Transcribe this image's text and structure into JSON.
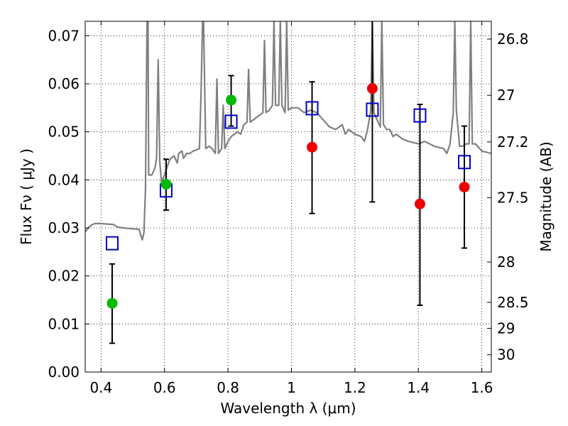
{
  "chart_data": {
    "type": "scatter",
    "xlabel": "Wavelength  λ (μm)",
    "ylabel": "Flux  Fν  ( μJy )",
    "y2label": "Magnitude (AB)",
    "xlim": [
      0.35,
      1.63
    ],
    "ylim": [
      0.0,
      0.073
    ],
    "grid": true,
    "x_ticks": [
      0.4,
      0.6,
      0.8,
      1.0,
      1.2,
      1.4,
      1.6
    ],
    "x_tick_labels": [
      "0.4",
      "0.6",
      "0.8",
      "1",
      "1.2",
      "1.4",
      "1.6"
    ],
    "y_ticks": [
      0.0,
      0.01,
      0.02,
      0.03,
      0.04,
      0.05,
      0.06,
      0.07
    ],
    "y_tick_labels": [
      "0.00",
      "0.01",
      "0.02",
      "0.03",
      "0.04",
      "0.05",
      "0.06",
      "0.07"
    ],
    "y2_ticks": [
      {
        "label": "26.8",
        "flux": 0.0693
      },
      {
        "label": "27",
        "flux": 0.0576
      },
      {
        "label": "27.2",
        "flux": 0.0479
      },
      {
        "label": "27.5",
        "flux": 0.0363
      },
      {
        "label": "28",
        "flux": 0.0229
      },
      {
        "label": "28.5",
        "flux": 0.0145
      },
      {
        "label": "29",
        "flux": 0.0091
      },
      {
        "label": "30",
        "flux": 0.0036
      }
    ],
    "series": [
      {
        "marker": "line",
        "color": "#808080",
        "points": [
          [
            0.35,
            0.0292
          ],
          [
            0.36,
            0.03
          ],
          [
            0.37,
            0.0306
          ],
          [
            0.38,
            0.0309
          ],
          [
            0.4,
            0.0309
          ],
          [
            0.42,
            0.0308
          ],
          [
            0.44,
            0.0307
          ],
          [
            0.45,
            0.0302
          ],
          [
            0.47,
            0.03
          ],
          [
            0.5,
            0.0298
          ],
          [
            0.52,
            0.0297
          ],
          [
            0.525,
            0.0285
          ],
          [
            0.53,
            0.0275
          ],
          [
            0.535,
            0.029
          ],
          [
            0.54,
            0.038
          ],
          [
            0.545,
            0.073
          ],
          [
            0.548,
            0.073
          ],
          [
            0.55,
            0.041
          ],
          [
            0.56,
            0.041
          ],
          [
            0.57,
            0.0425
          ],
          [
            0.575,
            0.0445
          ],
          [
            0.58,
            0.065
          ],
          [
            0.585,
            0.044
          ],
          [
            0.59,
            0.0395
          ],
          [
            0.6,
            0.041
          ],
          [
            0.61,
            0.043
          ],
          [
            0.615,
            0.044
          ],
          [
            0.62,
            0.0445
          ],
          [
            0.63,
            0.045
          ],
          [
            0.64,
            0.0435
          ],
          [
            0.645,
            0.0455
          ],
          [
            0.655,
            0.046
          ],
          [
            0.66,
            0.0445
          ],
          [
            0.67,
            0.0455
          ],
          [
            0.68,
            0.0455
          ],
          [
            0.69,
            0.046
          ],
          [
            0.7,
            0.0462
          ],
          [
            0.71,
            0.0465
          ],
          [
            0.715,
            0.0575
          ],
          [
            0.72,
            0.073
          ],
          [
            0.723,
            0.073
          ],
          [
            0.73,
            0.0465
          ],
          [
            0.74,
            0.047
          ],
          [
            0.75,
            0.0465
          ],
          [
            0.76,
            0.0455
          ],
          [
            0.765,
            0.061
          ],
          [
            0.77,
            0.0455
          ],
          [
            0.78,
            0.0465
          ],
          [
            0.785,
            0.0555
          ],
          [
            0.79,
            0.0465
          ],
          [
            0.8,
            0.048
          ],
          [
            0.81,
            0.049
          ],
          [
            0.82,
            0.0495
          ],
          [
            0.83,
            0.05
          ],
          [
            0.84,
            0.0495
          ],
          [
            0.85,
            0.0515
          ],
          [
            0.86,
            0.052
          ],
          [
            0.865,
            0.063
          ],
          [
            0.87,
            0.052
          ],
          [
            0.88,
            0.0525
          ],
          [
            0.89,
            0.053
          ],
          [
            0.9,
            0.0535
          ],
          [
            0.91,
            0.054
          ],
          [
            0.915,
            0.069
          ],
          [
            0.92,
            0.054
          ],
          [
            0.93,
            0.0545
          ],
          [
            0.94,
            0.0555
          ],
          [
            0.945,
            0.073
          ],
          [
            0.95,
            0.0555
          ],
          [
            0.96,
            0.0555
          ],
          [
            0.965,
            0.073
          ],
          [
            0.97,
            0.0555
          ],
          [
            0.98,
            0.054
          ],
          [
            0.985,
            0.073
          ],
          [
            0.99,
            0.0545
          ],
          [
            1.0,
            0.055
          ],
          [
            1.02,
            0.055
          ],
          [
            1.04,
            0.054
          ],
          [
            1.06,
            0.0545
          ],
          [
            1.08,
            0.054
          ],
          [
            1.1,
            0.0525
          ],
          [
            1.12,
            0.051
          ],
          [
            1.14,
            0.0505
          ],
          [
            1.16,
            0.0515
          ],
          [
            1.17,
            0.0495
          ],
          [
            1.18,
            0.0505
          ],
          [
            1.2,
            0.0495
          ],
          [
            1.22,
            0.049
          ],
          [
            1.23,
            0.048
          ],
          [
            1.24,
            0.0505
          ],
          [
            1.25,
            0.0545
          ],
          [
            1.255,
            0.073
          ],
          [
            1.26,
            0.054
          ],
          [
            1.27,
            0.0525
          ],
          [
            1.28,
            0.051
          ],
          [
            1.285,
            0.073
          ],
          [
            1.29,
            0.0515
          ],
          [
            1.3,
            0.0505
          ],
          [
            1.31,
            0.0505
          ],
          [
            1.32,
            0.049
          ],
          [
            1.33,
            0.0495
          ],
          [
            1.34,
            0.049
          ],
          [
            1.35,
            0.0485
          ],
          [
            1.37,
            0.048
          ],
          [
            1.4,
            0.0475
          ],
          [
            1.42,
            0.048
          ],
          [
            1.45,
            0.047
          ],
          [
            1.48,
            0.0465
          ],
          [
            1.49,
            0.0455
          ],
          [
            1.5,
            0.0475
          ],
          [
            1.51,
            0.054
          ],
          [
            1.515,
            0.073
          ],
          [
            1.52,
            0.0545
          ],
          [
            1.53,
            0.047
          ],
          [
            1.54,
            0.047
          ],
          [
            1.55,
            0.0475
          ],
          [
            1.56,
            0.0475
          ],
          [
            1.565,
            0.073
          ],
          [
            1.57,
            0.0475
          ],
          [
            1.58,
            0.0475
          ],
          [
            1.6,
            0.046
          ],
          [
            1.63,
            0.0455
          ]
        ]
      },
      {
        "marker": "open-square",
        "color": "#0000cc",
        "points": [
          [
            0.435,
            0.0268
          ],
          [
            0.605,
            0.0378
          ],
          [
            0.81,
            0.0521
          ],
          [
            1.065,
            0.0549
          ],
          [
            1.255,
            0.0546
          ],
          [
            1.405,
            0.0534
          ],
          [
            1.545,
            0.0437
          ]
        ]
      },
      {
        "marker": "filled-circle",
        "color": "#00bb00",
        "points": [
          [
            0.435,
            0.0143
          ],
          [
            0.605,
            0.0391
          ],
          [
            0.81,
            0.0566
          ]
        ]
      },
      {
        "marker": "filled-circle",
        "color": "#ee0000",
        "points": [
          [
            1.065,
            0.0468
          ],
          [
            1.255,
            0.059
          ],
          [
            1.405,
            0.035
          ],
          [
            1.545,
            0.0385
          ]
        ]
      },
      {
        "marker": "errorbar",
        "color": "#000000",
        "bars": [
          {
            "x": 0.435,
            "lo": 0.006,
            "hi": 0.0225
          },
          {
            "x": 0.605,
            "lo": 0.0337,
            "hi": 0.0443
          },
          {
            "x": 0.81,
            "lo": 0.0512,
            "hi": 0.0617
          },
          {
            "x": 1.065,
            "lo": 0.033,
            "hi": 0.0604
          },
          {
            "x": 1.255,
            "lo": 0.0354,
            "hi": 0.073
          },
          {
            "x": 1.405,
            "lo": 0.0139,
            "hi": 0.0557
          },
          {
            "x": 1.545,
            "lo": 0.0258,
            "hi": 0.0512
          }
        ]
      }
    ]
  }
}
